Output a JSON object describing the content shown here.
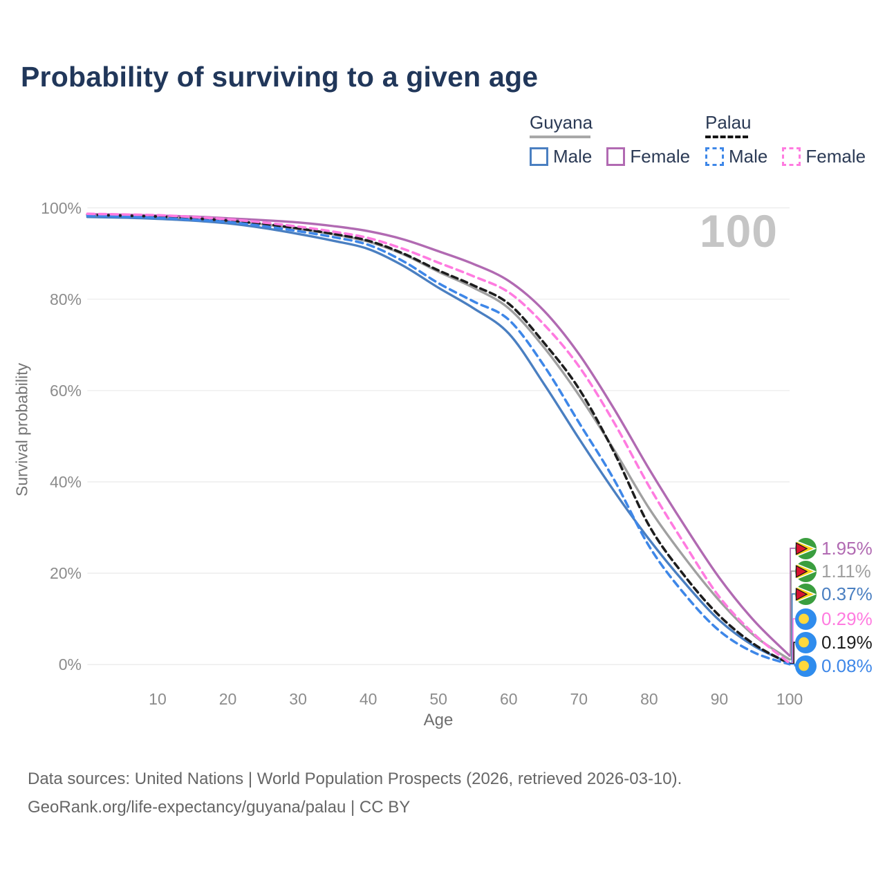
{
  "title": "Probability of surviving to a given age",
  "watermark": "100",
  "legend": {
    "groups": [
      {
        "country": "Guyana",
        "line_style": "solid",
        "underline_color": "#a8a8a8",
        "items": [
          {
            "label": "Male",
            "color": "#4a7fc1"
          },
          {
            "label": "Female",
            "color": "#b16ab2"
          }
        ]
      },
      {
        "country": "Palau",
        "line_style": "dashed",
        "underline_color": "#141414",
        "items": [
          {
            "label": "Male",
            "color": "#3e87e8"
          },
          {
            "label": "Female",
            "color": "#ff7be0"
          }
        ]
      }
    ]
  },
  "axes": {
    "y_title": "Survival probability",
    "x_title": "Age",
    "y_ticks": [
      "100%",
      "80%",
      "60%",
      "40%",
      "20%",
      "0%"
    ],
    "x_ticks": [
      10,
      20,
      30,
      40,
      50,
      60,
      70,
      80,
      90,
      100
    ]
  },
  "chart_data": {
    "type": "line",
    "title": "Probability of surviving to a given age",
    "xlabel": "Age",
    "ylabel": "Survival probability",
    "xlim": [
      0,
      100
    ],
    "ylim": [
      0,
      100
    ],
    "grid": "horizontal",
    "legend_position": "top-right",
    "ages": [
      0,
      5,
      10,
      15,
      20,
      25,
      30,
      35,
      40,
      45,
      50,
      55,
      60,
      65,
      70,
      75,
      80,
      85,
      90,
      95,
      100
    ],
    "series": [
      {
        "name": "Guyana Total",
        "country": "Guyana",
        "sex": "total",
        "color": "#a0a0a0",
        "dash": "solid",
        "values": [
          98.3,
          98.15,
          97.9,
          97.6,
          97.1,
          96.4,
          95.4,
          94.2,
          92.6,
          89.8,
          86.0,
          82.5,
          78.0,
          69.5,
          59.0,
          47.0,
          34.2,
          23.5,
          14.0,
          6.3,
          1.11
        ],
        "end_value": "1.11%"
      },
      {
        "name": "Guyana Male",
        "country": "Guyana",
        "sex": "male",
        "color": "#4a7fc1",
        "dash": "solid",
        "values": [
          98.0,
          97.85,
          97.6,
          97.2,
          96.6,
          95.6,
          94.3,
          92.8,
          91.0,
          87.3,
          82.5,
          78.0,
          72.5,
          61.5,
          49.5,
          38.0,
          27.4,
          18.0,
          9.7,
          4.0,
          0.37
        ],
        "end_value": "0.37%"
      },
      {
        "name": "Guyana Female",
        "country": "Guyana",
        "sex": "female",
        "color": "#b16ab2",
        "dash": "solid",
        "values": [
          98.6,
          98.5,
          98.3,
          98.1,
          97.7,
          97.3,
          96.8,
          96.0,
          94.9,
          93.1,
          90.5,
          87.7,
          84.0,
          77.5,
          68.0,
          56.0,
          42.8,
          30.5,
          19.0,
          9.5,
          1.95
        ],
        "end_value": "1.95%"
      },
      {
        "name": "Palau Total",
        "country": "Palau",
        "sex": "total",
        "color": "#1d1d1d",
        "dash": "dashed",
        "values": [
          98.5,
          98.3,
          98.1,
          97.7,
          97.2,
          96.5,
          95.5,
          94.3,
          92.8,
          90.0,
          86.3,
          83.0,
          79.0,
          70.5,
          60.4,
          46.5,
          30.4,
          19.5,
          10.7,
          4.4,
          0.19
        ],
        "end_value": "0.19%"
      },
      {
        "name": "Palau Male",
        "country": "Palau",
        "sex": "male",
        "color": "#3e87e8",
        "dash": "dashed",
        "values": [
          98.3,
          98.1,
          97.8,
          97.4,
          96.9,
          96.0,
          94.9,
          93.6,
          91.9,
          88.3,
          83.5,
          79.5,
          75.5,
          65.5,
          53.0,
          40.5,
          25.9,
          15.5,
          7.4,
          2.6,
          0.08
        ],
        "end_value": "0.08%"
      },
      {
        "name": "Palau Female",
        "country": "Palau",
        "sex": "female",
        "color": "#ff7be0",
        "dash": "dashed",
        "values": [
          98.7,
          98.55,
          98.4,
          98.0,
          97.5,
          96.8,
          95.9,
          94.8,
          93.4,
          91.0,
          88.0,
          85.0,
          81.5,
          74.5,
          65.3,
          53.0,
          39.0,
          26.5,
          14.8,
          6.6,
          0.29
        ],
        "end_value": "0.29%"
      }
    ]
  },
  "end_labels": [
    {
      "flag": "guyana",
      "text": "1.95%",
      "color": "#b16ab2",
      "series": "Guyana Female"
    },
    {
      "flag": "guyana",
      "text": "1.11%",
      "color": "#a0a0a0",
      "series": "Guyana Total"
    },
    {
      "flag": "guyana",
      "text": "0.37%",
      "color": "#4a7fc1",
      "series": "Guyana Male"
    },
    {
      "flag": "palau",
      "text": "0.29%",
      "color": "#ff7be0",
      "series": "Palau Female"
    },
    {
      "flag": "palau",
      "text": "0.19%",
      "color": "#1d1d1d",
      "series": "Palau Total"
    },
    {
      "flag": "palau",
      "text": "0.08%",
      "color": "#3e87e8",
      "series": "Palau Male"
    }
  ],
  "footer": {
    "line1": "Data sources: United Nations | World Population Prospects (2026, retrieved 2026-03-10).",
    "line2": "GeoRank.org/life-expectancy/guyana/palau | CC BY"
  }
}
